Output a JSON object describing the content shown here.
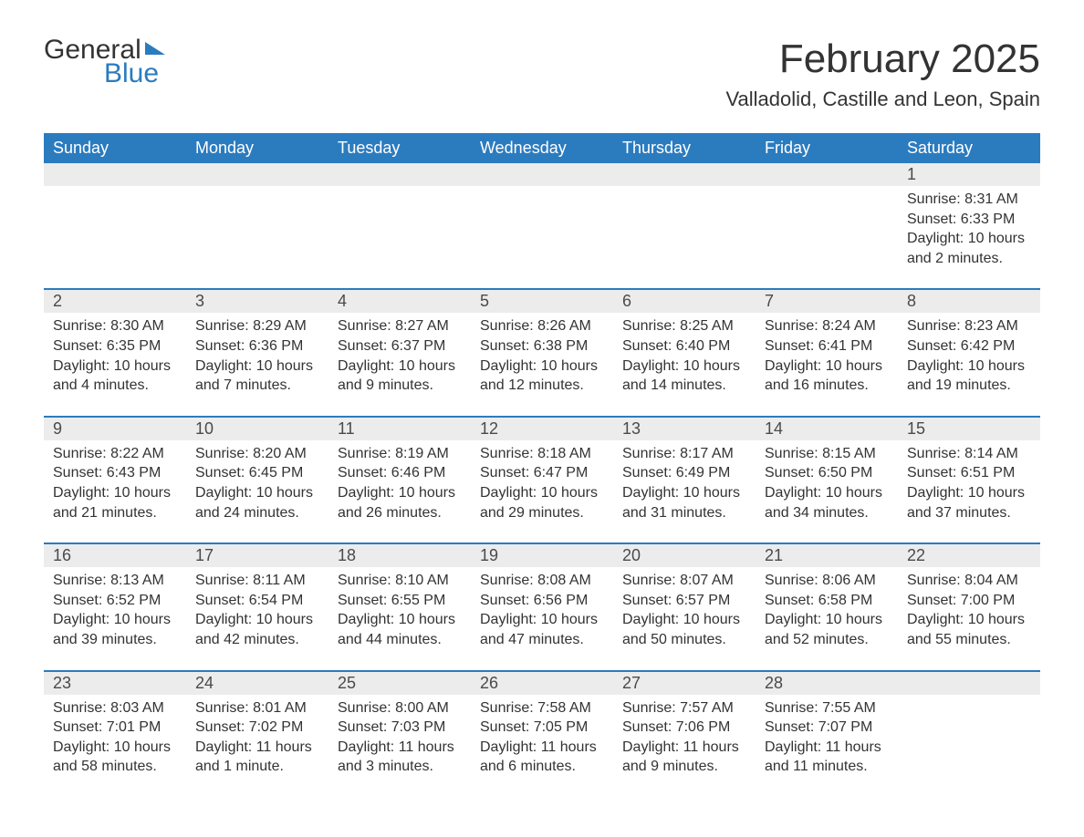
{
  "logo": {
    "text1": "General",
    "text2": "Blue"
  },
  "title": "February 2025",
  "location": "Valladolid, Castille and Leon, Spain",
  "colors": {
    "brand_blue": "#2b7bbf",
    "header_bg": "#2b7bbf",
    "header_text": "#ffffff",
    "daynum_bg": "#ececec",
    "body_text": "#333333",
    "row_border": "#2b7bbf"
  },
  "day_headers": [
    "Sunday",
    "Monday",
    "Tuesday",
    "Wednesday",
    "Thursday",
    "Friday",
    "Saturday"
  ],
  "weeks": [
    {
      "nums": [
        "",
        "",
        "",
        "",
        "",
        "",
        "1"
      ],
      "cells": [
        null,
        null,
        null,
        null,
        null,
        null,
        {
          "sunrise": "Sunrise: 8:31 AM",
          "sunset": "Sunset: 6:33 PM",
          "daylight": "Daylight: 10 hours and 2 minutes."
        }
      ]
    },
    {
      "nums": [
        "2",
        "3",
        "4",
        "5",
        "6",
        "7",
        "8"
      ],
      "cells": [
        {
          "sunrise": "Sunrise: 8:30 AM",
          "sunset": "Sunset: 6:35 PM",
          "daylight": "Daylight: 10 hours and 4 minutes."
        },
        {
          "sunrise": "Sunrise: 8:29 AM",
          "sunset": "Sunset: 6:36 PM",
          "daylight": "Daylight: 10 hours and 7 minutes."
        },
        {
          "sunrise": "Sunrise: 8:27 AM",
          "sunset": "Sunset: 6:37 PM",
          "daylight": "Daylight: 10 hours and 9 minutes."
        },
        {
          "sunrise": "Sunrise: 8:26 AM",
          "sunset": "Sunset: 6:38 PM",
          "daylight": "Daylight: 10 hours and 12 minutes."
        },
        {
          "sunrise": "Sunrise: 8:25 AM",
          "sunset": "Sunset: 6:40 PM",
          "daylight": "Daylight: 10 hours and 14 minutes."
        },
        {
          "sunrise": "Sunrise: 8:24 AM",
          "sunset": "Sunset: 6:41 PM",
          "daylight": "Daylight: 10 hours and 16 minutes."
        },
        {
          "sunrise": "Sunrise: 8:23 AM",
          "sunset": "Sunset: 6:42 PM",
          "daylight": "Daylight: 10 hours and 19 minutes."
        }
      ]
    },
    {
      "nums": [
        "9",
        "10",
        "11",
        "12",
        "13",
        "14",
        "15"
      ],
      "cells": [
        {
          "sunrise": "Sunrise: 8:22 AM",
          "sunset": "Sunset: 6:43 PM",
          "daylight": "Daylight: 10 hours and 21 minutes."
        },
        {
          "sunrise": "Sunrise: 8:20 AM",
          "sunset": "Sunset: 6:45 PM",
          "daylight": "Daylight: 10 hours and 24 minutes."
        },
        {
          "sunrise": "Sunrise: 8:19 AM",
          "sunset": "Sunset: 6:46 PM",
          "daylight": "Daylight: 10 hours and 26 minutes."
        },
        {
          "sunrise": "Sunrise: 8:18 AM",
          "sunset": "Sunset: 6:47 PM",
          "daylight": "Daylight: 10 hours and 29 minutes."
        },
        {
          "sunrise": "Sunrise: 8:17 AM",
          "sunset": "Sunset: 6:49 PM",
          "daylight": "Daylight: 10 hours and 31 minutes."
        },
        {
          "sunrise": "Sunrise: 8:15 AM",
          "sunset": "Sunset: 6:50 PM",
          "daylight": "Daylight: 10 hours and 34 minutes."
        },
        {
          "sunrise": "Sunrise: 8:14 AM",
          "sunset": "Sunset: 6:51 PM",
          "daylight": "Daylight: 10 hours and 37 minutes."
        }
      ]
    },
    {
      "nums": [
        "16",
        "17",
        "18",
        "19",
        "20",
        "21",
        "22"
      ],
      "cells": [
        {
          "sunrise": "Sunrise: 8:13 AM",
          "sunset": "Sunset: 6:52 PM",
          "daylight": "Daylight: 10 hours and 39 minutes."
        },
        {
          "sunrise": "Sunrise: 8:11 AM",
          "sunset": "Sunset: 6:54 PM",
          "daylight": "Daylight: 10 hours and 42 minutes."
        },
        {
          "sunrise": "Sunrise: 8:10 AM",
          "sunset": "Sunset: 6:55 PM",
          "daylight": "Daylight: 10 hours and 44 minutes."
        },
        {
          "sunrise": "Sunrise: 8:08 AM",
          "sunset": "Sunset: 6:56 PM",
          "daylight": "Daylight: 10 hours and 47 minutes."
        },
        {
          "sunrise": "Sunrise: 8:07 AM",
          "sunset": "Sunset: 6:57 PM",
          "daylight": "Daylight: 10 hours and 50 minutes."
        },
        {
          "sunrise": "Sunrise: 8:06 AM",
          "sunset": "Sunset: 6:58 PM",
          "daylight": "Daylight: 10 hours and 52 minutes."
        },
        {
          "sunrise": "Sunrise: 8:04 AM",
          "sunset": "Sunset: 7:00 PM",
          "daylight": "Daylight: 10 hours and 55 minutes."
        }
      ]
    },
    {
      "nums": [
        "23",
        "24",
        "25",
        "26",
        "27",
        "28",
        ""
      ],
      "cells": [
        {
          "sunrise": "Sunrise: 8:03 AM",
          "sunset": "Sunset: 7:01 PM",
          "daylight": "Daylight: 10 hours and 58 minutes."
        },
        {
          "sunrise": "Sunrise: 8:01 AM",
          "sunset": "Sunset: 7:02 PM",
          "daylight": "Daylight: 11 hours and 1 minute."
        },
        {
          "sunrise": "Sunrise: 8:00 AM",
          "sunset": "Sunset: 7:03 PM",
          "daylight": "Daylight: 11 hours and 3 minutes."
        },
        {
          "sunrise": "Sunrise: 7:58 AM",
          "sunset": "Sunset: 7:05 PM",
          "daylight": "Daylight: 11 hours and 6 minutes."
        },
        {
          "sunrise": "Sunrise: 7:57 AM",
          "sunset": "Sunset: 7:06 PM",
          "daylight": "Daylight: 11 hours and 9 minutes."
        },
        {
          "sunrise": "Sunrise: 7:55 AM",
          "sunset": "Sunset: 7:07 PM",
          "daylight": "Daylight: 11 hours and 11 minutes."
        },
        null
      ]
    }
  ]
}
